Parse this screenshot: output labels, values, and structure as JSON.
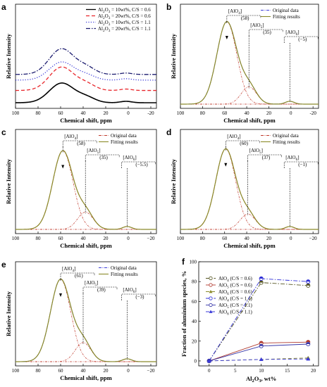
{
  "chart_data": [
    {
      "panel": "a",
      "type": "line",
      "xlabel": "Chemical shift, ppm",
      "ylabel": "Relative Intensity",
      "xlim": [
        100,
        -25
      ],
      "xticks": [
        "100",
        "80",
        "60",
        "40",
        "20",
        "0",
        "-20"
      ],
      "series": [
        {
          "name": "Al2O3 = 10wt%, C/S = 0.6",
          "legend_parts": [
            "Al",
            "2",
            "O",
            "3",
            " = 10wt%, C/S = 0.6"
          ],
          "style": "solid",
          "color": "#000000",
          "offset": 0.0,
          "peak": 0.52
        },
        {
          "name": "Al2O3 = 20wt%, C/S = 0.6",
          "legend_parts": [
            "Al",
            "2",
            "O",
            "3",
            " = 20wt%, C/S = 0.6"
          ],
          "style": "dashed",
          "color": "#e8262b",
          "offset": 0.13,
          "peak": 0.62
        },
        {
          "name": "Al2O3 = 10wt%, C/S = 1.1",
          "legend_parts": [
            "Al",
            "2",
            "O",
            "3",
            " = 10wt%, C/S = 1.1"
          ],
          "style": "dotted",
          "color": "#3b3bd9",
          "offset": 0.24,
          "peak": 0.48
        },
        {
          "name": "Al2O3 = 20wt%, C/S = 1.1",
          "legend_parts": [
            "Al",
            "2",
            "O",
            "3",
            " = 20wt%, C/S = 1.1"
          ],
          "style": "dashdot",
          "color": "#1a1a6e",
          "offset": 0.3,
          "peak": 0.68
        }
      ]
    },
    {
      "panel": "b",
      "type": "line",
      "xlabel": "Chemical shift, ppm",
      "ylabel": "Relative Intensity",
      "xlim": [
        100,
        -25
      ],
      "xticks": [
        "100",
        "80",
        "60",
        "40",
        "20",
        "0",
        "-20"
      ],
      "legend": [
        "Original data",
        "Fitting results"
      ],
      "legend_colors": [
        "#3b3bd9",
        "#8a8a2a"
      ],
      "peaks": [
        {
          "species": [
            "[AlO",
            "4",
            "]"
          ],
          "shift": "(58)",
          "x": 58,
          "h": 0.86,
          "w": 9
        },
        {
          "species": [
            "[AlO",
            "5",
            "]"
          ],
          "shift": "(35)",
          "x": 38,
          "h": 0.18,
          "w": 7
        },
        {
          "species": [
            "[AlO",
            "6",
            "]"
          ],
          "shift": "(−5)",
          "x": 1,
          "h": 0.03,
          "w": 4
        }
      ]
    },
    {
      "panel": "c",
      "type": "line",
      "xlabel": "Chemical shift, ppm",
      "ylabel": "Relative Intensity",
      "xlim": [
        100,
        -25
      ],
      "xticks": [
        "100",
        "80",
        "60",
        "40",
        "20",
        "0",
        "−20"
      ],
      "legend": [
        "Original data",
        "Fitting results"
      ],
      "legend_colors": [
        "#c0392b",
        "#8a8a2a"
      ],
      "peaks": [
        {
          "species": [
            "[AlO",
            "4",
            "]"
          ],
          "shift": "(58)",
          "x": 58,
          "h": 0.82,
          "w": 9
        },
        {
          "species": [
            "[AlO",
            "5",
            "]"
          ],
          "shift": "(35)",
          "x": 38,
          "h": 0.18,
          "w": 7
        },
        {
          "species": [
            "[AlO",
            "6",
            "]"
          ],
          "shift": "(−5.5)",
          "x": 1,
          "h": 0.03,
          "w": 4
        }
      ]
    },
    {
      "panel": "d",
      "type": "line",
      "xlabel": "Chemical shift, ppm",
      "ylabel": "Relative Intensity",
      "xlim": [
        100,
        -25
      ],
      "xticks": [
        "100",
        "80",
        "60",
        "40",
        "20",
        "0",
        "−20"
      ],
      "legend": [
        "Original data",
        "Fitting results"
      ],
      "legend_colors": [
        "#c0392b",
        "#8a8a2a"
      ],
      "peaks": [
        {
          "species": [
            "[AlO",
            "4",
            "]"
          ],
          "shift": "(60)",
          "x": 59,
          "h": 0.84,
          "w": 9
        },
        {
          "species": [
            "[AlO",
            "5",
            "]"
          ],
          "shift": "(37)",
          "x": 39,
          "h": 0.16,
          "w": 7
        },
        {
          "species": [
            "[AlO",
            "6",
            "]"
          ],
          "shift": "(−1)",
          "x": 1,
          "h": 0.03,
          "w": 4
        }
      ]
    },
    {
      "panel": "e",
      "type": "line",
      "xlabel": "Chemical shift, ppm",
      "ylabel": "Relative Intensity",
      "xlim": [
        100,
        -25
      ],
      "xticks": [
        "100",
        "80",
        "60",
        "40",
        "20",
        "0",
        "−20"
      ],
      "legend": [
        "Original data",
        "Fitting results"
      ],
      "legend_colors": [
        "#3b3bd9",
        "#8a8a2a"
      ],
      "peaks": [
        {
          "species": [
            "[AlO",
            "4",
            "]"
          ],
          "shift": "(61)",
          "x": 60,
          "h": 0.86,
          "w": 9
        },
        {
          "species": [
            "[AlO",
            "5",
            "]"
          ],
          "shift": "(39)",
          "x": 40,
          "h": 0.2,
          "w": 7
        },
        {
          "species": [
            "[AlO",
            "6",
            "]"
          ],
          "shift": "(−3)",
          "x": 1,
          "h": 0.03,
          "w": 4
        }
      ]
    },
    {
      "panel": "f",
      "type": "line",
      "xlabel_parts": [
        "Al",
        "2",
        "O",
        "3",
        ", wt%"
      ],
      "ylabel": "Fraction of aluminium species, %",
      "xlim": [
        -2,
        21
      ],
      "ylim": [
        -5,
        100
      ],
      "xticks": [
        0,
        5,
        10,
        15,
        20
      ],
      "yticks": [
        0,
        20,
        40,
        60,
        80,
        100
      ],
      "x": [
        0,
        10,
        19
      ],
      "series": [
        {
          "name": "AlO4 (C/S = 0.6)",
          "label_parts": [
            "AlO",
            "4",
            " (C/S = 0.6)"
          ],
          "values": [
            0,
            79,
            76
          ],
          "color": "#555522",
          "marker": "circle",
          "style": "dashdot"
        },
        {
          "name": "AlO5 (C/S = 0.6)",
          "label_parts": [
            "AlO",
            "5",
            " (C/S = 0.6)"
          ],
          "values": [
            0,
            18,
            19
          ],
          "color": "#b03a2e",
          "marker": "circle",
          "style": "solid"
        },
        {
          "name": "AlO6 (C/S = 0.6)",
          "label_parts": [
            "AlO",
            "6",
            " (C/S = 0.6)"
          ],
          "values": [
            0,
            1.5,
            3
          ],
          "color": "#8a8a2a",
          "marker": "triangle",
          "style": "dashed"
        },
        {
          "name": "AlO4 (C/S = 1.1)",
          "label_parts": [
            "AlO",
            "4",
            " (C/S = 1.1)"
          ],
          "values": [
            0,
            83,
            80
          ],
          "color": "#2f2fd6",
          "marker": "circle",
          "style": "dashdot"
        },
        {
          "name": "AlO5 (C/S = 1.1)",
          "label_parts": [
            "AlO",
            "5",
            " (C/S = 1.1)"
          ],
          "values": [
            0,
            15,
            17
          ],
          "color": "#3535a8",
          "marker": "circle",
          "style": "solid"
        },
        {
          "name": "AlO6 (C/S = 1.1)",
          "label_parts": [
            "AlO",
            "6",
            " (C/S = 1.1)"
          ],
          "values": [
            0,
            1.5,
            2
          ],
          "color": "#3b3bd9",
          "marker": "triangle",
          "style": "dashed"
        }
      ]
    }
  ]
}
